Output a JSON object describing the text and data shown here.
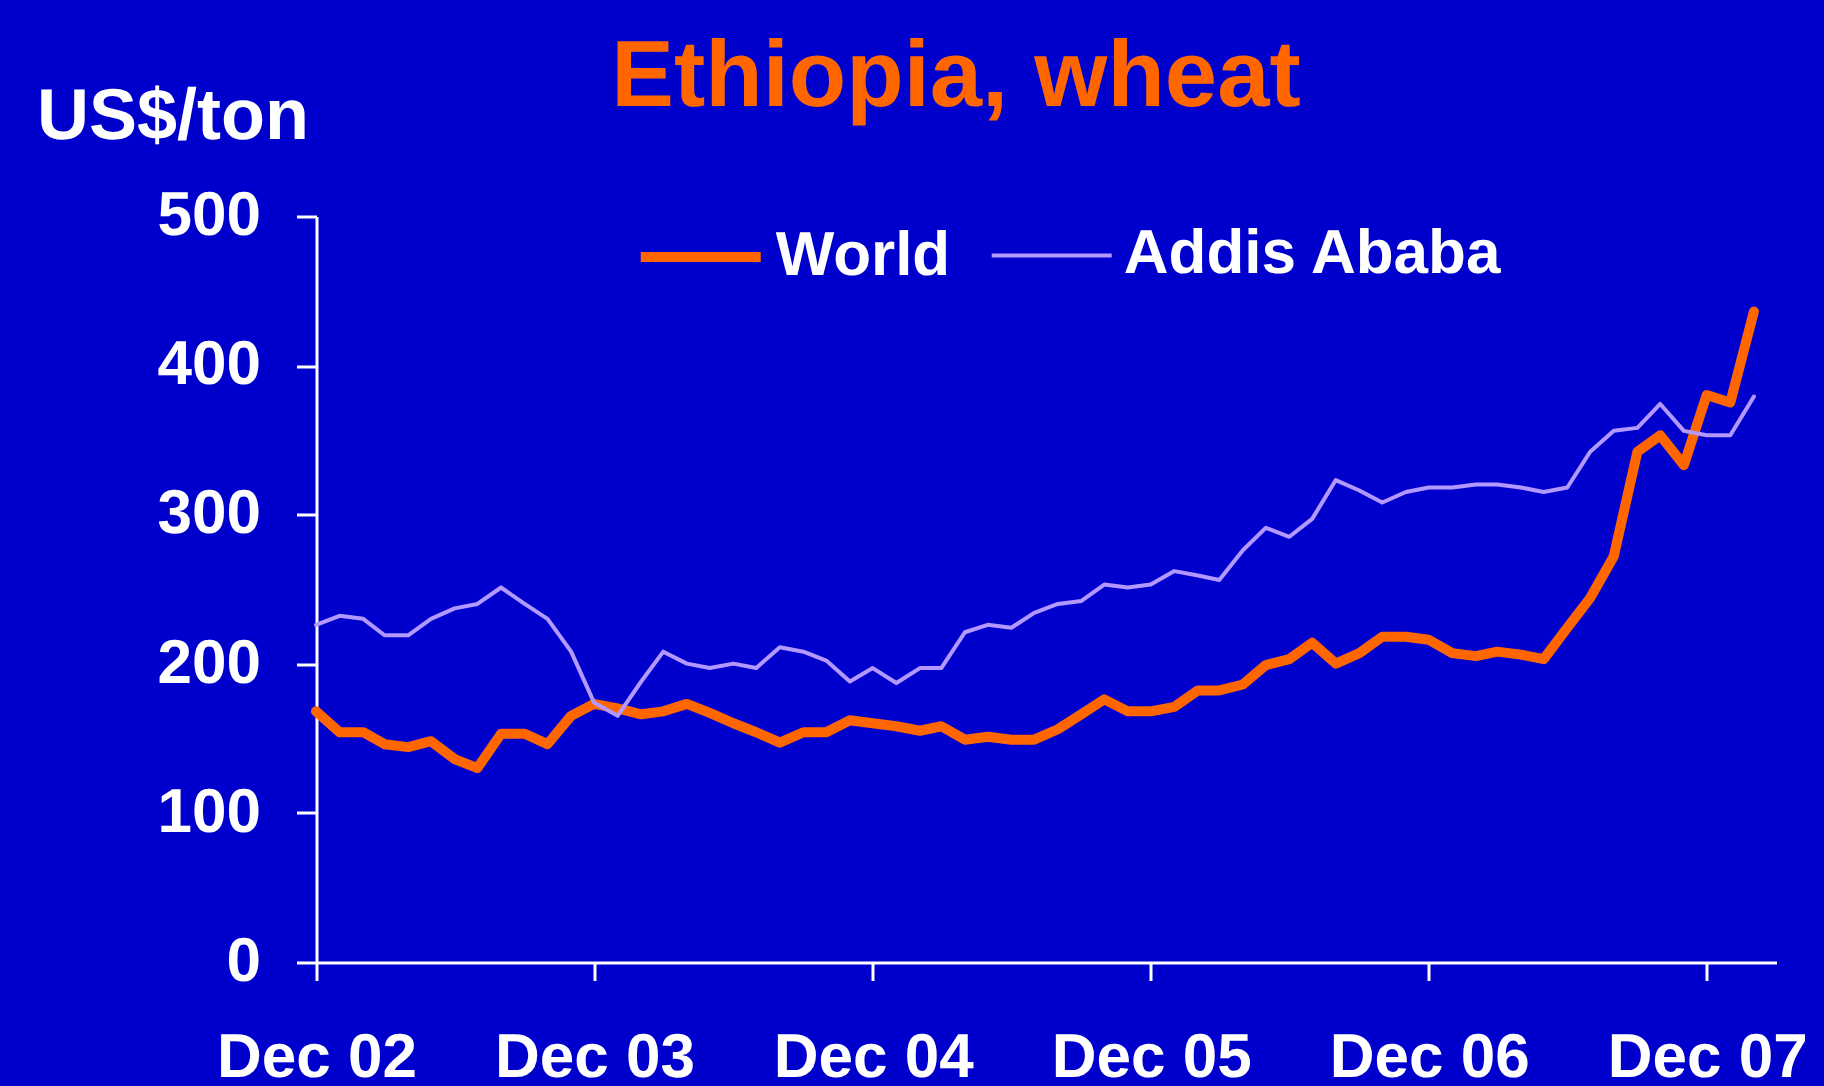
{
  "chart_data": {
    "type": "line",
    "title": "Ethiopia, wheat",
    "ylabel": "US$/ton",
    "x": [
      "2002-12",
      "2003-01",
      "2003-02",
      "2003-03",
      "2003-04",
      "2003-05",
      "2003-06",
      "2003-07",
      "2003-08",
      "2003-09",
      "2003-10",
      "2003-11",
      "2003-12",
      "2004-01",
      "2004-02",
      "2004-03",
      "2004-04",
      "2004-05",
      "2004-06",
      "2004-07",
      "2004-08",
      "2004-09",
      "2004-10",
      "2004-11",
      "2004-12",
      "2005-01",
      "2005-02",
      "2005-03",
      "2005-04",
      "2005-05",
      "2005-06",
      "2005-07",
      "2005-08",
      "2005-09",
      "2005-10",
      "2005-11",
      "2005-12",
      "2006-01",
      "2006-02",
      "2006-03",
      "2006-04",
      "2006-05",
      "2006-06",
      "2006-07",
      "2006-08",
      "2006-09",
      "2006-10",
      "2006-11",
      "2006-12",
      "2007-01",
      "2007-02",
      "2007-03",
      "2007-04",
      "2007-05",
      "2007-06",
      "2007-07",
      "2007-08",
      "2007-09",
      "2007-10",
      "2007-11",
      "2007-12",
      "2008-01",
      "2008-02"
    ],
    "series": [
      {
        "name": "World",
        "color": "#ff6600",
        "values": [
          168,
          154,
          154,
          146,
          144,
          148,
          136,
          130,
          153,
          153,
          146,
          165,
          173,
          170,
          166,
          168,
          173,
          167,
          160,
          154,
          147,
          154,
          154,
          162,
          160,
          158,
          155,
          158,
          149,
          151,
          149,
          149,
          156,
          166,
          176,
          168,
          168,
          171,
          182,
          182,
          186,
          199,
          203,
          214,
          200,
          207,
          218,
          218,
          216,
          207,
          205,
          208,
          206,
          203,
          224,
          244,
          272,
          342,
          353,
          333,
          380,
          375,
          436
        ]
      },
      {
        "name": "Addis Ababa",
        "color": "#b399ff",
        "values": [
          226,
          232,
          230,
          219,
          219,
          230,
          237,
          240,
          251,
          240,
          230,
          208,
          174,
          165,
          188,
          208,
          200,
          197,
          200,
          197,
          211,
          208,
          202,
          188,
          197,
          187,
          197,
          197,
          221,
          226,
          224,
          234,
          240,
          242,
          253,
          251,
          253,
          262,
          259,
          256,
          276,
          291,
          285,
          297,
          323,
          316,
          308,
          315,
          318,
          318,
          320,
          320,
          318,
          315,
          318,
          342,
          356,
          358,
          374,
          356,
          353,
          353,
          379
        ]
      }
    ],
    "xlim": [
      "2002-12",
      "2008-03"
    ],
    "xticks": [
      {
        "value": "2002-12",
        "label": "Dec 02"
      },
      {
        "value": "2003-12",
        "label": "Dec 03"
      },
      {
        "value": "2004-12",
        "label": "Dec 04"
      },
      {
        "value": "2005-12",
        "label": "Dec 05"
      },
      {
        "value": "2006-12",
        "label": "Dec 06"
      },
      {
        "value": "2007-12",
        "label": "Dec 07"
      }
    ],
    "ylim": [
      0,
      500
    ],
    "yticks": [
      0,
      100,
      200,
      300,
      400,
      500
    ],
    "grid": false,
    "legend": "top",
    "line_style": "solid"
  }
}
